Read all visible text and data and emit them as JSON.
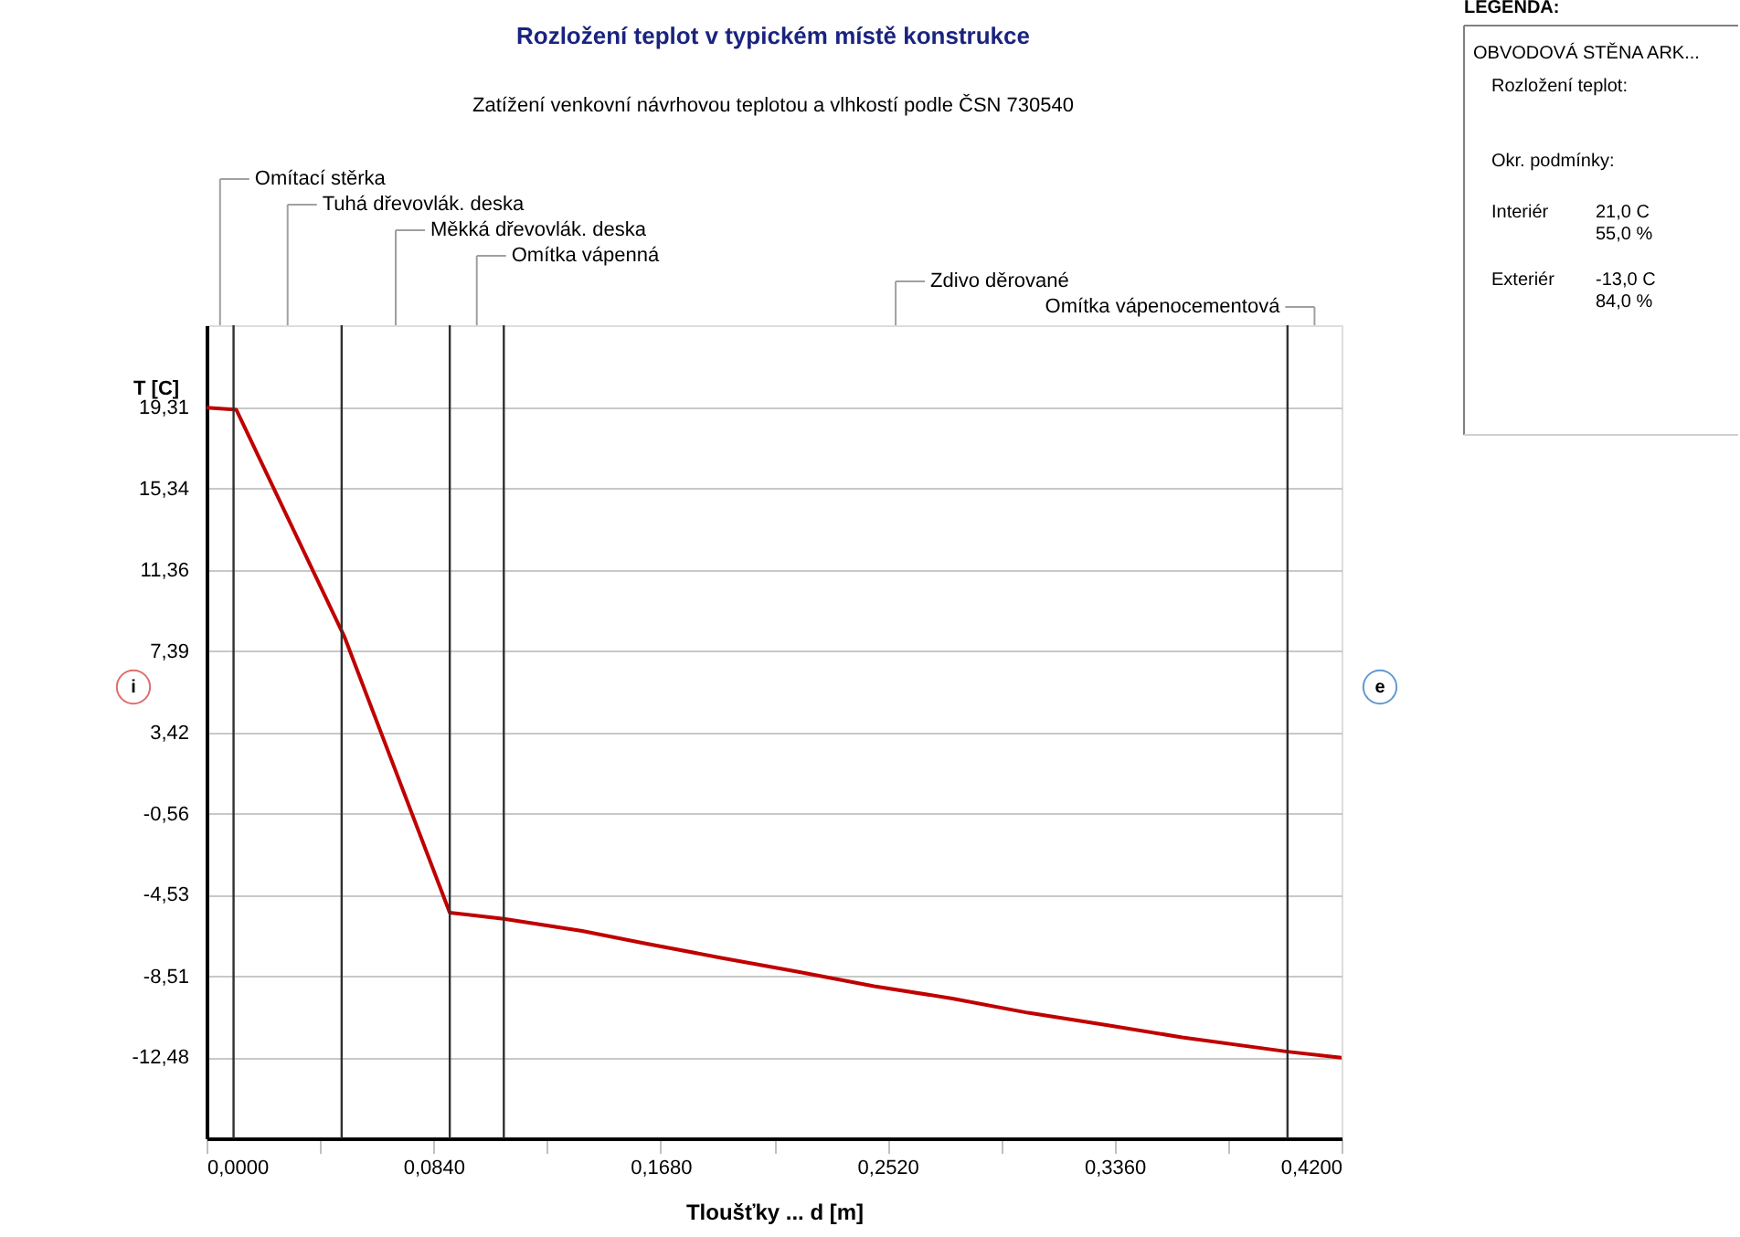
{
  "chart_data": {
    "type": "line",
    "title": "Rozložení teplot v typickém místě konstrukce",
    "subtitle": "Zatížení venkovní návrhovou teplotou a vlhkostí podle ČSN 730540",
    "xlabel": "Tloušťky ... d [m]",
    "ylabel": "T [C]",
    "x": [
      0,
      0.011,
      0.051,
      0.09,
      0.11,
      0.139,
      0.162,
      0.19,
      0.219,
      0.247,
      0.276,
      0.304,
      0.333,
      0.361,
      0.4,
      0.42
    ],
    "series": [
      {
        "color": "#c00000",
        "values": [
          19.3,
          19.2,
          8.1,
          -5.4,
          -5.7,
          -6.3,
          -6.9,
          -7.6,
          -8.3,
          -9.0,
          -9.6,
          -10.3,
          -10.9,
          -11.5,
          -12.2,
          -12.5
        ]
      }
    ],
    "xlim": [
      0,
      0.42
    ],
    "ylim": [
      -16.44,
      23.33
    ],
    "xticks": [
      {
        "value": 0,
        "label": "0,0000"
      },
      {
        "value": 0.042,
        "label": null
      },
      {
        "value": 0.084,
        "label": "0,0840"
      },
      {
        "value": 0.126,
        "label": null
      },
      {
        "value": 0.168,
        "label": "0,1680"
      },
      {
        "value": 0.21,
        "label": null
      },
      {
        "value": 0.252,
        "label": "0,2520"
      },
      {
        "value": 0.294,
        "label": null
      },
      {
        "value": 0.336,
        "label": "0,3360"
      },
      {
        "value": 0.378,
        "label": null
      },
      {
        "value": 0.42,
        "label": "0,4200"
      }
    ],
    "yticks": [
      {
        "value": 19.31,
        "label": "19,31"
      },
      {
        "value": 15.34,
        "label": "15,34"
      },
      {
        "value": 11.36,
        "label": "11,36"
      },
      {
        "value": 7.39,
        "label": "7,39"
      },
      {
        "value": 3.42,
        "label": "3,42"
      },
      {
        "value": -0.56,
        "label": "-0,56"
      },
      {
        "value": -4.53,
        "label": "-4,53"
      },
      {
        "value": -8.51,
        "label": "-8,51"
      },
      {
        "value": -12.48,
        "label": "-12,48"
      }
    ],
    "ref_lines": [
      {
        "axis": "x",
        "value": 0.01,
        "color": "#303030"
      },
      {
        "axis": "x",
        "value": 0.05,
        "color": "#303030"
      },
      {
        "axis": "x",
        "value": 0.09,
        "color": "#303030"
      },
      {
        "axis": "x",
        "value": 0.11,
        "color": "#303030"
      },
      {
        "axis": "x",
        "value": 0.4,
        "color": "#303030"
      }
    ],
    "annotations": [
      "Omítací stěrka",
      "Tuhá dřevovlák. deska",
      "Měkká dřevovlák. deska",
      "Omítka vápenná",
      "Zdivo děrované",
      "Omítka vápenocementová",
      "i",
      "e",
      "LEGENDA:",
      "OBVODOVÁ STĚNA ARK...",
      "Rozložení teplot:",
      "Okr. podmínky:",
      "Interiér",
      "21,0 C",
      "55,0 %",
      "Exteriér",
      "-13,0 C",
      "84,0 %"
    ],
    "grid": "y",
    "marker": "none",
    "line_style": "solid"
  }
}
